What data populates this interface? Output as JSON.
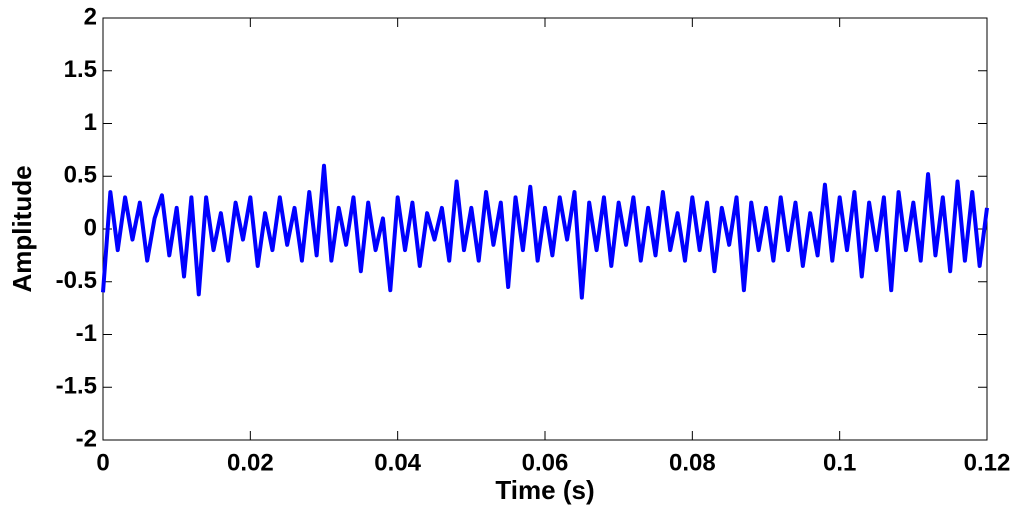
{
  "chart_data": {
    "type": "line",
    "x_label": "Time (s)",
    "y_label": "Amplitude",
    "xlim": [
      0,
      0.12
    ],
    "ylim": [
      -2,
      2
    ],
    "xticks": [
      0,
      0.02,
      0.04,
      0.06,
      0.08,
      0.1,
      0.12
    ],
    "yticks": [
      -2,
      -1.5,
      -1,
      -0.5,
      0,
      0.5,
      1,
      1.5,
      2
    ],
    "grid": false,
    "series": [
      {
        "color": "#0000ff",
        "x": [
          0,
          0.001,
          0.002,
          0.003,
          0.004,
          0.005,
          0.006,
          0.007,
          0.008,
          0.009,
          0.01,
          0.011,
          0.012,
          0.013,
          0.014,
          0.015,
          0.016,
          0.017,
          0.018,
          0.019,
          0.02,
          0.021,
          0.022,
          0.023,
          0.024,
          0.025,
          0.026,
          0.027,
          0.028,
          0.029,
          0.03,
          0.031,
          0.032,
          0.033,
          0.034,
          0.035,
          0.036,
          0.037,
          0.038,
          0.039,
          0.04,
          0.041,
          0.042,
          0.043,
          0.044,
          0.045,
          0.046,
          0.047,
          0.048,
          0.049,
          0.05,
          0.051,
          0.052,
          0.053,
          0.054,
          0.055,
          0.056,
          0.057,
          0.058,
          0.059,
          0.06,
          0.061,
          0.062,
          0.063,
          0.064,
          0.065,
          0.066,
          0.067,
          0.068,
          0.069,
          0.07,
          0.071,
          0.072,
          0.073,
          0.074,
          0.075,
          0.076,
          0.077,
          0.078,
          0.079,
          0.08,
          0.081,
          0.082,
          0.083,
          0.084,
          0.085,
          0.086,
          0.087,
          0.088,
          0.089,
          0.09,
          0.091,
          0.092,
          0.093,
          0.094,
          0.095,
          0.096,
          0.097,
          0.098,
          0.099,
          0.1,
          0.101,
          0.102,
          0.103,
          0.104,
          0.105,
          0.106,
          0.107,
          0.108,
          0.109,
          0.11,
          0.111,
          0.112,
          0.113,
          0.114,
          0.115,
          0.116,
          0.117,
          0.118,
          0.119,
          0.12
        ],
        "values": [
          -0.6,
          0.35,
          -0.2,
          0.3,
          -0.1,
          0.25,
          -0.3,
          0.1,
          0.32,
          -0.25,
          0.2,
          -0.45,
          0.3,
          -0.62,
          0.3,
          -0.2,
          0.15,
          -0.3,
          0.25,
          -0.1,
          0.3,
          -0.35,
          0.15,
          -0.2,
          0.3,
          -0.15,
          0.2,
          -0.3,
          0.35,
          -0.25,
          0.6,
          -0.3,
          0.2,
          -0.15,
          0.3,
          -0.4,
          0.25,
          -0.2,
          0.1,
          -0.58,
          0.3,
          -0.2,
          0.25,
          -0.35,
          0.15,
          -0.1,
          0.2,
          -0.3,
          0.45,
          -0.2,
          0.2,
          -0.3,
          0.35,
          -0.15,
          0.25,
          -0.55,
          0.3,
          -0.2,
          0.4,
          -0.3,
          0.2,
          -0.25,
          0.3,
          -0.1,
          0.35,
          -0.65,
          0.25,
          -0.2,
          0.3,
          -0.35,
          0.25,
          -0.15,
          0.3,
          -0.3,
          0.2,
          -0.25,
          0.35,
          -0.2,
          0.15,
          -0.3,
          0.3,
          -0.2,
          0.25,
          -0.4,
          0.2,
          -0.15,
          0.3,
          -0.58,
          0.25,
          -0.2,
          0.2,
          -0.3,
          0.3,
          -0.2,
          0.25,
          -0.35,
          0.15,
          -0.25,
          0.42,
          -0.3,
          0.3,
          -0.2,
          0.35,
          -0.45,
          0.25,
          -0.2,
          0.3,
          -0.58,
          0.35,
          -0.2,
          0.25,
          -0.3,
          0.52,
          -0.25,
          0.3,
          -0.4,
          0.45,
          -0.3,
          0.35,
          -0.35,
          0.2
        ]
      }
    ]
  }
}
